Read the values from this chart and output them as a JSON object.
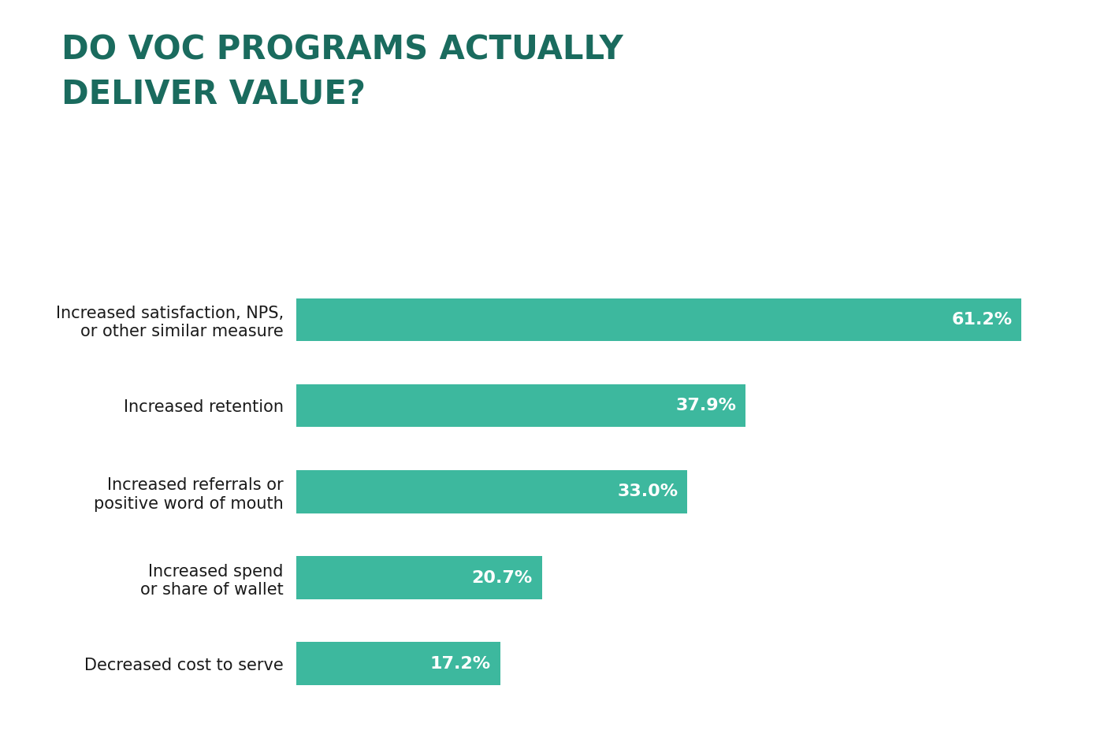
{
  "title_line1": "DO VOC PROGRAMS ACTUALLY",
  "title_line2": "DELIVER VALUE?",
  "title_color": "#1a6b5e",
  "background_color": "#ffffff",
  "bar_color": "#3db89e",
  "categories": [
    "Increased satisfaction, NPS,\nor other similar measure",
    "Increased retention",
    "Increased referrals or\npositive word of mouth",
    "Increased spend\nor share of wallet",
    "Decreased cost to serve"
  ],
  "values": [
    61.2,
    37.9,
    33.0,
    20.7,
    17.2
  ],
  "label_fontsize": 15,
  "value_fontsize": 16,
  "title_fontsize": 30,
  "xlim": [
    0,
    68
  ],
  "bar_height": 0.5
}
